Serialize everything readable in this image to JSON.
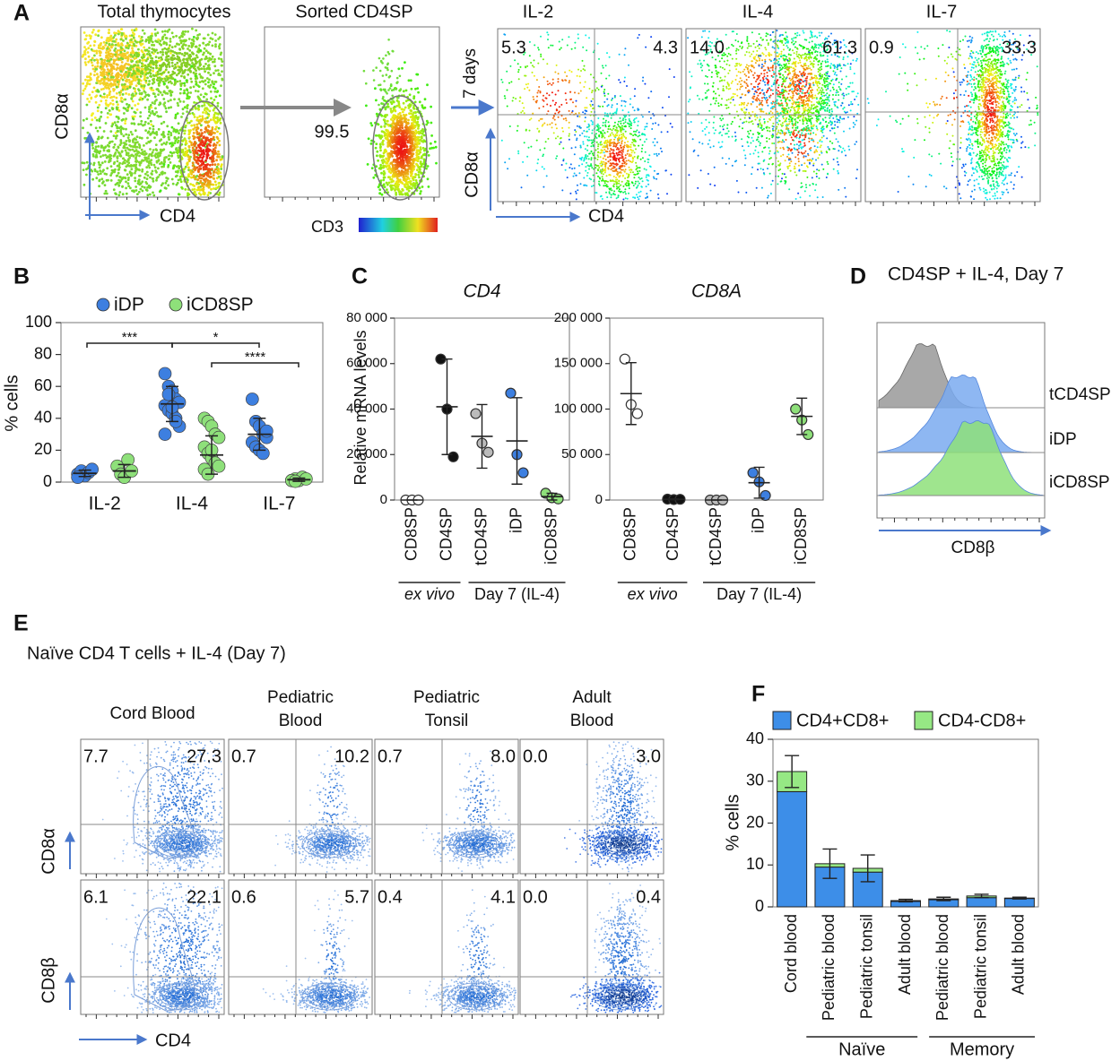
{
  "panel_a": {
    "label": "A",
    "titles": [
      "Total thymocytes",
      "Sorted CD4SP",
      "IL-2",
      "IL-4",
      "IL-7"
    ],
    "gate": "99.5",
    "x_axis": "CD4",
    "y_axis": "CD8α",
    "color_axis": "CD3",
    "time": "7 days",
    "quadrants": [
      [
        "5.3",
        "4.3"
      ],
      [
        "14.0",
        "61.3"
      ],
      [
        "0.9",
        "33.3"
      ]
    ]
  },
  "panel_b": {
    "label": "B",
    "type": "dot",
    "ylabel": "% cells",
    "categories": [
      "IL-2",
      "IL-4",
      "IL-7"
    ],
    "ylim": [
      0,
      100
    ],
    "yticks": [
      0,
      20,
      40,
      60,
      80,
      100
    ],
    "series": [
      {
        "name": "iDP",
        "color": "#3d7fe0",
        "points": [
          [
            5,
            7,
            4,
            6,
            8,
            3
          ],
          [
            68,
            60,
            57,
            52,
            50,
            48,
            45,
            43,
            40,
            35,
            30,
            55,
            47,
            38
          ],
          [
            52,
            38,
            35,
            30,
            28,
            25,
            22,
            20,
            18,
            32
          ]
        ],
        "values": [
          5.5,
          49,
          30
        ],
        "errors": [
          2,
          11,
          10
        ]
      },
      {
        "name": "iCD8SP",
        "color": "#8ee07a",
        "points": [
          [
            10,
            5,
            3,
            14,
            7
          ],
          [
            40,
            38,
            35,
            30,
            28,
            22,
            18,
            15,
            12,
            10,
            8,
            5,
            20
          ],
          [
            1,
            2,
            1,
            3,
            2,
            1,
            0.5
          ]
        ],
        "values": [
          7,
          17,
          1.5
        ],
        "errors": [
          4,
          12,
          1
        ]
      }
    ],
    "significance": [
      "***",
      "*",
      "****"
    ]
  },
  "panel_c": {
    "label": "C",
    "ylabel": "Relative mRNA levels",
    "groups": [
      "ex vivo",
      "Day 7 (IL-4)"
    ],
    "charts": [
      {
        "type": "dot",
        "title": "CD4",
        "categories": [
          "CD8SP",
          "CD4SP",
          "tCD4SP",
          "iDP",
          "iCD8SP"
        ],
        "colors": [
          "#ffffff",
          "#111111",
          "#bbbbbb",
          "#3d7fe0",
          "#8ee07a"
        ],
        "points": [
          [
            0,
            0,
            0
          ],
          [
            62000,
            40000,
            19000
          ],
          [
            38000,
            25000,
            21000
          ],
          [
            47000,
            20000,
            12000
          ],
          [
            3000,
            1000,
            500
          ]
        ],
        "values": [
          0,
          41000,
          28000,
          26000,
          1500
        ],
        "errors": [
          0,
          21000,
          14000,
          19000,
          1500
        ],
        "ylim": [
          0,
          80000
        ],
        "yticks": [
          0,
          {
            "value": 20000,
            "label": "20 000"
          },
          {
            "value": 40000,
            "label": "40 000"
          },
          {
            "value": 60000,
            "label": "60 000"
          },
          {
            "value": 80000,
            "label": "80 000"
          }
        ]
      },
      {
        "type": "dot",
        "title": "CD8A",
        "categories": [
          "CD8SP",
          "CD4SP",
          "tCD4SP",
          "iDP",
          "iCD8SP"
        ],
        "colors": [
          "#ffffff",
          "#111111",
          "#bbbbbb",
          "#3d7fe0",
          "#8ee07a"
        ],
        "points": [
          [
            155000,
            105000,
            95000
          ],
          [
            1000,
            500,
            800
          ],
          [
            0,
            0,
            0
          ],
          [
            30000,
            20000,
            5000
          ],
          [
            100000,
            88000,
            72000
          ]
        ],
        "values": [
          117000,
          800,
          0,
          19000,
          92000
        ],
        "errors": [
          34000,
          500,
          0,
          17000,
          20000
        ],
        "ylim": [
          0,
          200000
        ],
        "yticks": [
          0,
          {
            "value": 50000,
            "label": "50 000"
          },
          {
            "value": 100000,
            "label": "100 000"
          },
          {
            "value": 150000,
            "label": "150 000"
          },
          {
            "value": 200000,
            "label": "200 000"
          }
        ]
      }
    ]
  },
  "panel_d": {
    "label": "D",
    "title": "CD4SP + IL-4, Day 7",
    "samples": [
      "tCD4SP",
      "iDP",
      "iCD8SP"
    ],
    "x_axis": "CD8β"
  },
  "panel_e": {
    "label": "E",
    "title": "Naïve CD4 T cells + IL-4 (Day 7)",
    "columns": [
      [
        "Cord Blood"
      ],
      [
        "Pediatric",
        "Blood"
      ],
      [
        "Pediatric",
        "Tonsil"
      ],
      [
        "Adult",
        "Blood"
      ]
    ],
    "rows": [
      "CD8α",
      "CD8β"
    ],
    "x_axis": "CD4",
    "quadrants": [
      [
        [
          "7.7",
          "27.3"
        ],
        [
          "0.7",
          "10.2"
        ],
        [
          "0.7",
          "8.0"
        ],
        [
          "0.0",
          "3.0"
        ]
      ],
      [
        [
          "6.1",
          "22.1"
        ],
        [
          "0.6",
          "5.7"
        ],
        [
          "0.4",
          "4.1"
        ],
        [
          "0.0",
          "0.4"
        ]
      ]
    ]
  },
  "panel_f": {
    "label": "F",
    "type": "bar",
    "stacked": true,
    "ylabel": "% cells",
    "categories": [
      "Cord blood",
      "Pediatric blood",
      "Pediatric tonsil",
      "Adult blood",
      "Pediatric blood",
      "Pediatric tonsil",
      "Adult blood"
    ],
    "series": [
      {
        "name": "CD4+CD8+",
        "color": "#3d8ee8",
        "values": [
          27.5,
          9.5,
          8.3,
          1.3,
          1.7,
          2.2,
          2.0
        ]
      },
      {
        "name": "CD4-CD8+",
        "color": "#96e884",
        "values": [
          4.8,
          0.8,
          0.9,
          0.2,
          0.2,
          0.4,
          0.1
        ]
      }
    ],
    "errors": [
      3.8,
      3.5,
      3.2,
      0.3,
      0.4,
      0.4,
      0.2
    ],
    "ylim": [
      0,
      40
    ],
    "yticks": [
      0,
      10,
      20,
      30,
      40
    ],
    "groups": [
      "Naïve",
      "Memory"
    ]
  }
}
